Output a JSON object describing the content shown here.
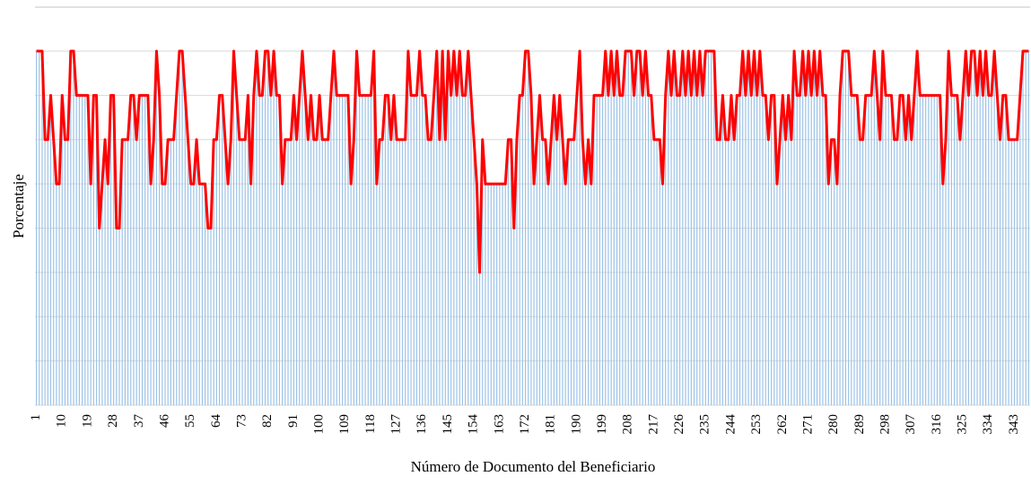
{
  "chart_data": {
    "type": "combo",
    "y_label": "Porcentaje",
    "x_label": "Número de Documento del Beneficiario",
    "bar_color": "#9dc3e6",
    "line_color": "#ff0000",
    "grid": true,
    "ylim": [
      0,
      8
    ],
    "yticks": [
      0,
      1,
      2,
      3,
      4,
      5,
      6,
      7,
      8
    ],
    "categories": [
      1,
      null,
      null,
      null,
      null,
      null,
      null,
      null,
      null,
      10,
      null,
      null,
      null,
      null,
      null,
      null,
      null,
      null,
      19,
      null,
      null,
      null,
      null,
      null,
      null,
      null,
      null,
      28,
      null,
      null,
      null,
      null,
      null,
      null,
      null,
      null,
      37,
      null,
      null,
      null,
      null,
      null,
      null,
      null,
      null,
      46,
      null,
      null,
      null,
      null,
      null,
      null,
      null,
      null,
      55,
      null,
      null,
      null,
      null,
      null,
      null,
      null,
      null,
      64,
      null,
      null,
      null,
      null,
      null,
      null,
      null,
      null,
      73,
      null,
      null,
      null,
      null,
      null,
      null,
      null,
      null,
      82,
      null,
      null,
      null,
      null,
      null,
      null,
      null,
      null,
      91,
      null,
      null,
      null,
      null,
      null,
      null,
      null,
      null,
      100,
      null,
      null,
      null,
      null,
      null,
      null,
      null,
      null,
      109,
      null,
      null,
      null,
      null,
      null,
      null,
      null,
      null,
      118,
      null,
      null,
      null,
      null,
      null,
      null,
      null,
      null,
      127,
      null,
      null,
      null,
      null,
      null,
      null,
      null,
      null,
      136,
      null,
      null,
      null,
      null,
      null,
      null,
      null,
      null,
      145,
      null,
      null,
      null,
      null,
      null,
      null,
      null,
      null,
      154,
      null,
      null,
      null,
      null,
      null,
      null,
      null,
      null,
      163,
      null,
      null,
      null,
      null,
      null,
      null,
      null,
      null,
      172,
      null,
      null,
      null,
      null,
      null,
      null,
      null,
      null,
      181,
      null,
      null,
      null,
      null,
      null,
      null,
      null,
      null,
      190,
      null,
      null,
      null,
      null,
      null,
      null,
      null,
      null,
      199,
      null,
      null,
      null,
      null,
      null,
      null,
      null,
      null,
      208,
      null,
      null,
      null,
      null,
      null,
      null,
      null,
      null,
      217,
      null,
      null,
      null,
      null,
      null,
      null,
      null,
      null,
      226,
      null,
      null,
      null,
      null,
      null,
      null,
      null,
      null,
      235,
      null,
      null,
      null,
      null,
      null,
      null,
      null,
      null,
      244,
      null,
      null,
      null,
      null,
      null,
      null,
      null,
      null,
      253,
      null,
      null,
      null,
      null,
      null,
      null,
      null,
      null,
      262,
      null,
      null,
      null,
      null,
      null,
      null,
      null,
      null,
      271,
      null,
      null,
      null,
      null,
      null,
      null,
      null,
      null,
      280,
      null,
      null,
      null,
      null,
      null,
      null,
      null,
      null,
      289,
      null,
      null,
      null,
      null,
      null,
      null,
      null,
      null,
      298,
      null,
      null,
      null,
      null,
      null,
      null,
      null,
      null,
      307,
      null,
      null,
      null,
      null,
      null,
      null,
      null,
      null,
      316,
      null,
      null,
      null,
      null,
      null,
      null,
      null,
      null,
      325,
      null,
      null,
      null,
      null,
      null,
      null,
      null,
      null,
      334,
      null,
      null,
      null,
      null,
      null,
      null,
      null,
      null,
      343,
      null,
      null,
      null,
      null,
      null
    ],
    "values": [
      8,
      8,
      8,
      6,
      6,
      7,
      6,
      5,
      5,
      7,
      6,
      6,
      8,
      8,
      7,
      7,
      7,
      7,
      7,
      5,
      7,
      7,
      4,
      5,
      6,
      5,
      7,
      7,
      4,
      4,
      6,
      6,
      6,
      7,
      7,
      6,
      7,
      7,
      7,
      7,
      5,
      6,
      8,
      7,
      5,
      5,
      6,
      6,
      6,
      7,
      8,
      8,
      7,
      6,
      5,
      5,
      6,
      5,
      5,
      5,
      4,
      4,
      6,
      6,
      7,
      7,
      6,
      5,
      6,
      8,
      7,
      6,
      6,
      6,
      7,
      5,
      7,
      8,
      7,
      7,
      8,
      8,
      7,
      8,
      7,
      7,
      5,
      6,
      6,
      6,
      7,
      6,
      7,
      8,
      7,
      6,
      7,
      6,
      6,
      7,
      6,
      6,
      6,
      7,
      8,
      7,
      7,
      7,
      7,
      7,
      5,
      6,
      8,
      7,
      7,
      7,
      7,
      7,
      8,
      5,
      6,
      6,
      7,
      7,
      6,
      7,
      6,
      6,
      6,
      6,
      8,
      7,
      7,
      7,
      8,
      7,
      7,
      6,
      6,
      7,
      8,
      6,
      8,
      6,
      8,
      7,
      8,
      7,
      8,
      7,
      7,
      8,
      7,
      6,
      5,
      3,
      6,
      5,
      5,
      5,
      5,
      5,
      5,
      5,
      5,
      6,
      6,
      4,
      6,
      7,
      7,
      8,
      8,
      7,
      5,
      6,
      7,
      6,
      6,
      5,
      6,
      7,
      6,
      7,
      6,
      5,
      6,
      6,
      6,
      7,
      8,
      6,
      5,
      6,
      5,
      7,
      7,
      7,
      7,
      8,
      7,
      8,
      7,
      8,
      7,
      7,
      8,
      8,
      8,
      7,
      8,
      8,
      7,
      8,
      7,
      7,
      6,
      6,
      6,
      5,
      7,
      8,
      7,
      8,
      7,
      7,
      8,
      7,
      8,
      7,
      8,
      7,
      8,
      7,
      8,
      8,
      8,
      8,
      6,
      6,
      7,
      6,
      6,
      7,
      6,
      7,
      7,
      8,
      7,
      8,
      7,
      8,
      7,
      8,
      7,
      7,
      6,
      7,
      7,
      5,
      6,
      7,
      6,
      7,
      6,
      8,
      7,
      7,
      8,
      7,
      8,
      7,
      8,
      7,
      8,
      7,
      7,
      5,
      6,
      6,
      5,
      7,
      8,
      8,
      8,
      7,
      7,
      7,
      6,
      6,
      7,
      7,
      7,
      8,
      7,
      6,
      8,
      7,
      7,
      7,
      6,
      6,
      7,
      7,
      6,
      7,
      6,
      7,
      8,
      7,
      7,
      7,
      7,
      7,
      7,
      7,
      7,
      5,
      6,
      8,
      7,
      7,
      7,
      6,
      7,
      8,
      7,
      8,
      8,
      7,
      8,
      7,
      8,
      7,
      7,
      8,
      7,
      6,
      7,
      7,
      6,
      6,
      6,
      6,
      7,
      8,
      8,
      8
    ]
  }
}
